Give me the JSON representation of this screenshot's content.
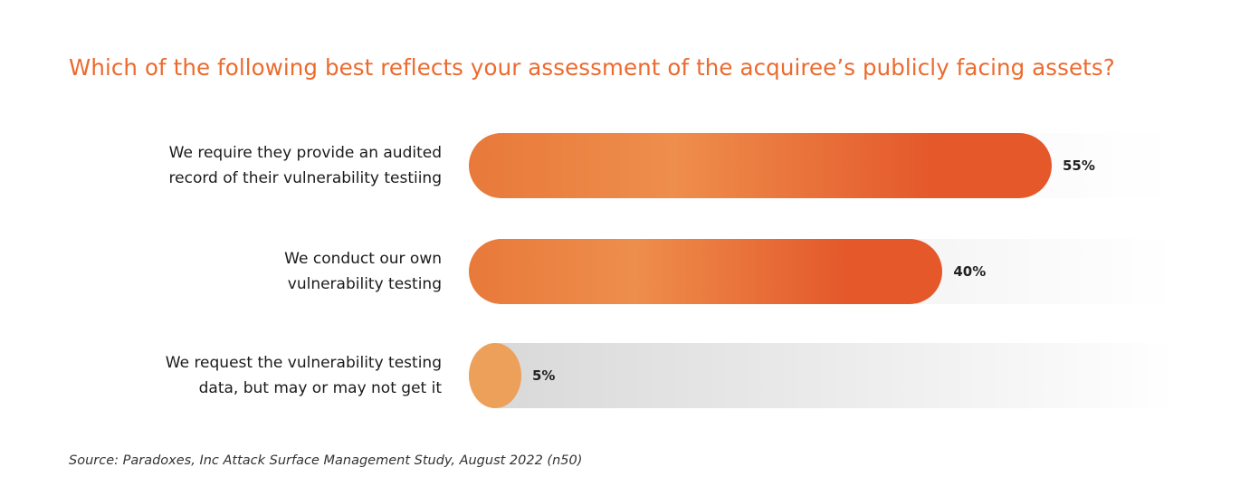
{
  "chart_data": {
    "type": "bar",
    "orientation": "horizontal",
    "title": "Which of the following best reflects your assessment of the acquiree’s publicly facing assets?",
    "categories": [
      [
        "We require they provide an audited",
        "record of their vulnerability testiing"
      ],
      [
        "We conduct our own",
        "vulnerability testing"
      ],
      [
        "We request the vulnerability testing",
        "data, but may or may not get it"
      ]
    ],
    "values": [
      55,
      40,
      5
    ],
    "value_labels": [
      "55%",
      "40%",
      "5%"
    ],
    "unit": "%",
    "xlim": [
      0,
      100
    ],
    "grid": false,
    "legend": "none",
    "source": "Source: Paradoxes, Inc Attack Surface Management Study, August 2022 (n50)"
  },
  "colors": {
    "title": "#ec6a2e",
    "bar_start": "#e8793a",
    "bar_mid": "#ee8e4c",
    "bar_end": "#e4582a",
    "small_bar": "#eda05a",
    "track": "#e2e2e2"
  }
}
